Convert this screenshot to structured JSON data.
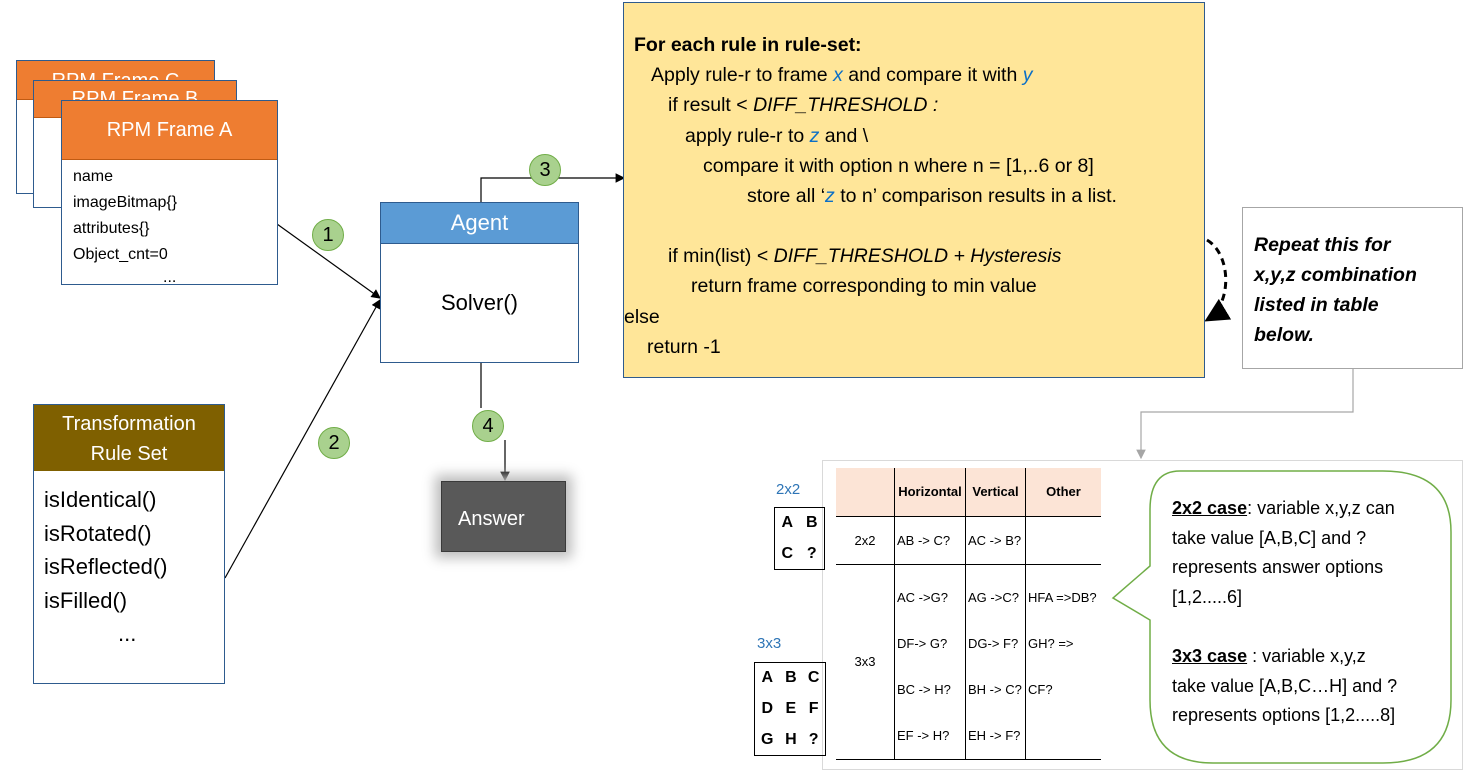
{
  "frames": {
    "back2_title": "RPM Frame C",
    "back1_title": "RPM Frame B",
    "front_title": "RPM Frame A",
    "fields": [
      "name",
      "imageBitmap{}",
      "attributes{}",
      "Object_cnt=0",
      "..."
    ]
  },
  "agent": {
    "title": "Agent",
    "method": "Solver()"
  },
  "ruleset": {
    "title_line1": "Transformation",
    "title_line2": "Rule Set",
    "rules": [
      "isIdentical()",
      "isRotated()",
      "isReflected()",
      "isFilled()",
      "..."
    ]
  },
  "answer": {
    "label": "Answer"
  },
  "steps": [
    "1",
    "2",
    "3",
    "4"
  ],
  "algorithm": {
    "heading": "For each rule in rule-set:",
    "l1a": "Apply rule-r to frame ",
    "l1x": "x",
    "l1b": " and compare it with ",
    "l1y": "y",
    "l2a": "if result < ",
    "l2b": "DIFF_THRESHOLD :",
    "l3a": "apply rule-r to ",
    "l3z": "z",
    "l3b": " and \\",
    "l4": "compare it with option n where n = [1,..6 or 8]",
    "l5a": "store all ‘",
    "l5z": "z",
    "l5b": " to n’ comparison results in a list.",
    "l6a": "if min(list) < ",
    "l6b": "DIFF_THRESHOLD + Hysteresis",
    "l7": "return frame corresponding to min value",
    "l8": "else",
    "l9": "return -1"
  },
  "note": {
    "lines": [
      "Repeat this for",
      "x,y,z combination",
      "listed in table",
      "below."
    ]
  },
  "lower": {
    "label_2x2": "2x2",
    "grid_2x2": [
      [
        "A",
        "B"
      ],
      [
        "C",
        "?"
      ]
    ],
    "label_3x3": "3x3",
    "grid_3x3": [
      [
        "A",
        "B",
        "C"
      ],
      [
        "D",
        "E",
        "F"
      ],
      [
        "G",
        "H",
        "?"
      ]
    ],
    "table": {
      "headers": [
        "",
        "Horizontal",
        "Vertical",
        "Other"
      ],
      "row_2x2": {
        "label": "2x2",
        "horizontal": "AB -> C?",
        "vertical": "AC -> B?",
        "other": ""
      },
      "row_3x3": {
        "label": "3x3",
        "horizontal": [
          "AC ->G?",
          "DF-> G?",
          "BC -> H?",
          "EF -> H?"
        ],
        "vertical": [
          "AG ->C?",
          "DG-> F?",
          "BH -> C?",
          "EH -> F?"
        ],
        "other": [
          "HFA =>DB?",
          "GH? => CF?"
        ]
      }
    },
    "callout": {
      "case1_title": "2x2 case",
      "case1_l1": ":  variable x,y,z can",
      "case1_l2": "take value [A,B,C] and ?",
      "case1_l3": "represents answer options",
      "case1_l4": "[1,2.....6]",
      "case2_title": "3x3 case",
      "case2_l1": " :  variable x,y,z",
      "case2_l2": "take value [A,B,C…H] and ?",
      "case2_l3": "represents options [1,2.....8]"
    }
  },
  "colors": {
    "frame_header": "#ee7d31",
    "agent_header": "#5b9bd5",
    "ruleset_header": "#7f6000",
    "algo_fill": "#ffe699",
    "answer_fill": "#595959",
    "step_fill": "#a9d18e",
    "variable": "#0b6fc6",
    "table_header": "#fce4d6"
  }
}
